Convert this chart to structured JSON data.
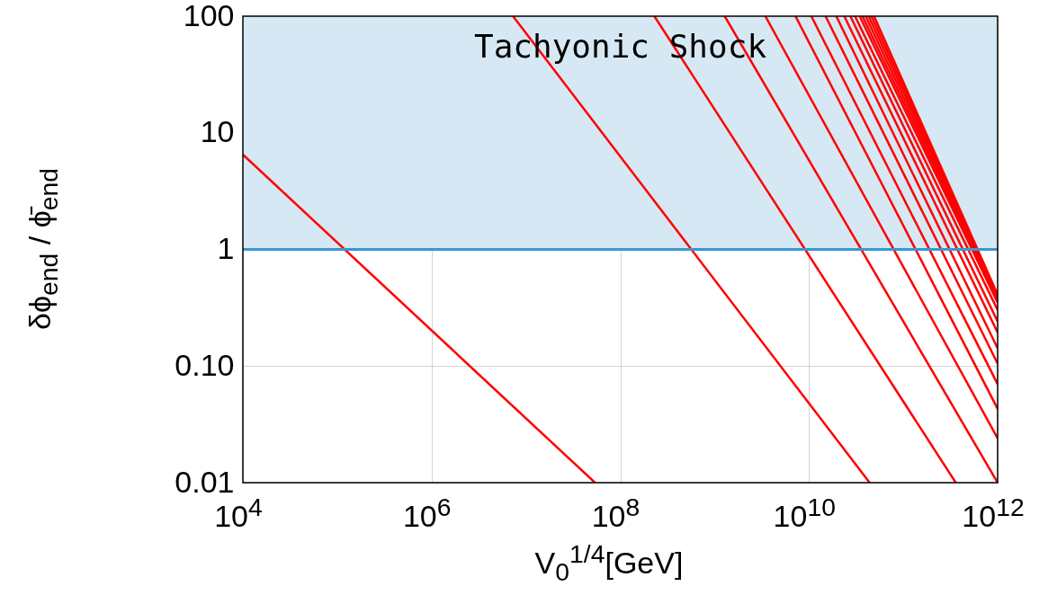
{
  "chart_data": {
    "type": "line",
    "xlabel": "V$_{0}$$^{1/4}$[GeV]",
    "ylabel": "δϕ$_{end}$ / ϕ̄$_{end}$",
    "log": "xy",
    "grid": true,
    "legend": false,
    "xlim": [
      10000.0,
      1000000000000.0
    ],
    "ylim": [
      0.01,
      100
    ],
    "xticks": [
      {
        "value": 10000.0,
        "label": "10$^{4}$"
      },
      {
        "value": 1000000.0,
        "label": "10$^{6}$"
      },
      {
        "value": 100000000.0,
        "label": "10$^{8}$"
      },
      {
        "value": 10000000000.0,
        "label": "10$^{10}$"
      },
      {
        "value": 1000000000000.0,
        "label": "10$^{12}$"
      }
    ],
    "yticks": [
      0.01,
      {
        "value": 0.1,
        "label": "0.10"
      },
      1,
      10,
      100
    ],
    "bands": [
      {
        "axis": "y",
        "from": 1,
        "to": 100,
        "label": "Tachyonic Shock",
        "color": "#d6e8f3"
      }
    ],
    "ref_lines": [
      {
        "axis": "y",
        "value": 1,
        "color": "#3a97d0"
      }
    ],
    "series": [
      {
        "color": "#ff0000",
        "x": [
          10000.0,
          54000000.0
        ],
        "values": [
          6.5,
          0.01
        ]
      },
      {
        "color": "#ff0000",
        "x": [
          7300000.0,
          44000000000.0
        ],
        "values": [
          100,
          0.01
        ]
      },
      {
        "color": "#ff0000",
        "x": [
          230000000.0,
          360000000000.0
        ],
        "values": [
          100,
          0.01
        ]
      },
      {
        "color": "#ff0000",
        "x": [
          1280000000.0,
          1000000000000.0
        ],
        "values": [
          100,
          0.01
        ]
      },
      {
        "color": "#ff0000",
        "x": [
          3450000000.0,
          1000000000000.0
        ],
        "values": [
          100,
          0.024
        ]
      },
      {
        "color": "#ff0000",
        "x": [
          7200000000.0,
          1000000000000.0
        ],
        "values": [
          100,
          0.043
        ]
      },
      {
        "color": "#ff0000",
        "x": [
          10600000000.0,
          1000000000000.0
        ],
        "values": [
          100,
          0.07
        ]
      },
      {
        "color": "#ff0000",
        "x": [
          15000000000.0,
          1000000000000.0
        ],
        "values": [
          100,
          0.105
        ]
      },
      {
        "color": "#ff0000",
        "x": [
          19500000000.0,
          1000000000000.0
        ],
        "values": [
          100,
          0.142
        ]
      },
      {
        "color": "#ff0000",
        "x": [
          23700000000.0,
          1000000000000.0
        ],
        "values": [
          100,
          0.194
        ]
      },
      {
        "color": "#ff0000",
        "x": [
          27500000000.0,
          1000000000000.0
        ],
        "values": [
          100,
          0.241
        ]
      },
      {
        "color": "#ff0000",
        "x": [
          30800000000.0,
          1000000000000.0
        ],
        "values": [
          100,
          0.302
        ]
      },
      {
        "color": "#ff0000",
        "x": [
          34500000000.0,
          1000000000000.0
        ],
        "values": [
          100,
          0.35
        ]
      },
      {
        "color": "#ff0000",
        "x": [
          37000000000.0,
          1000000000000.0
        ],
        "values": [
          100,
          0.37
        ]
      },
      {
        "color": "#ff0000",
        "x": [
          40000000000.0,
          1000000000000.0
        ],
        "values": [
          100,
          0.38
        ]
      },
      {
        "color": "#ff0000",
        "x": [
          43000000000.0,
          1000000000000.0
        ],
        "values": [
          100,
          0.39
        ]
      },
      {
        "color": "#ff0000",
        "x": [
          46000000000.0,
          1000000000000.0
        ],
        "values": [
          100,
          0.4
        ]
      },
      {
        "color": "#ff0000",
        "x": [
          49000000000.0,
          1000000000000.0
        ],
        "values": [
          100,
          0.41
        ]
      }
    ]
  }
}
